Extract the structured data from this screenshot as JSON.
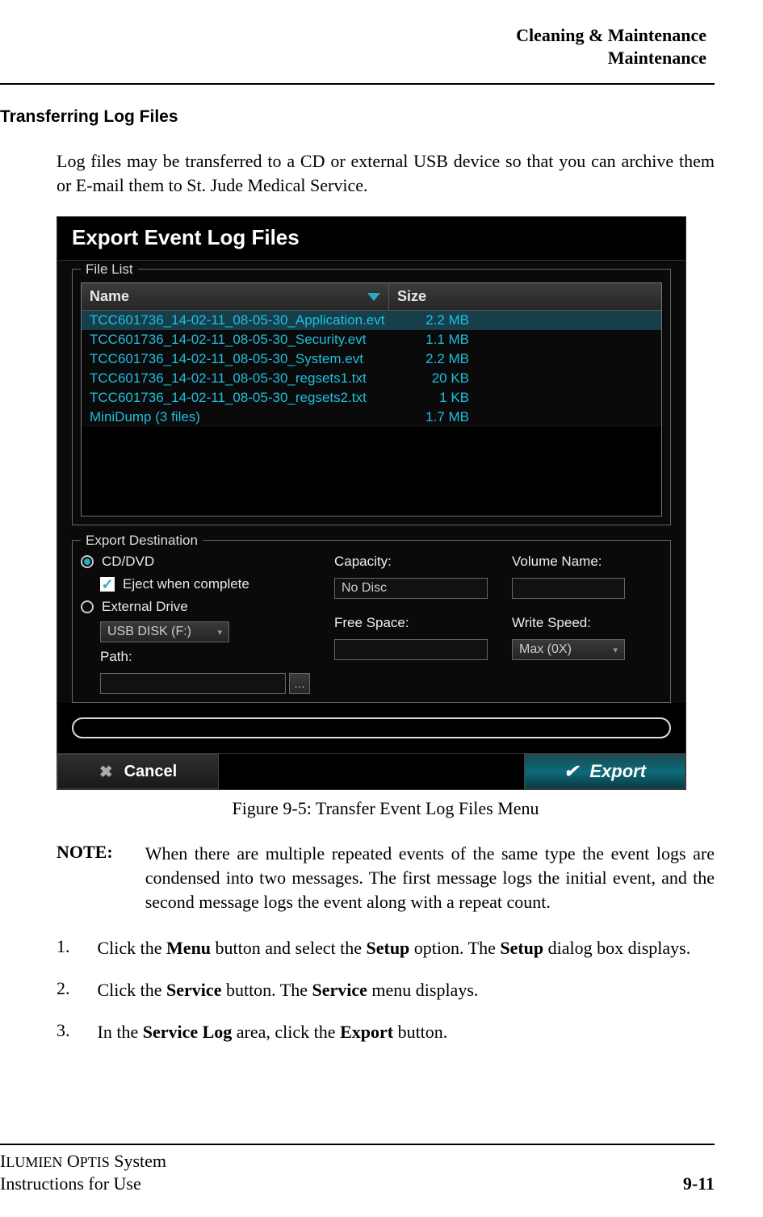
{
  "header": {
    "line1": "Cleaning & Maintenance",
    "line2": "Maintenance"
  },
  "section_title": "Transferring Log Files",
  "intro": "Log files may be transferred to a CD or external USB device so that you can archive them or E-mail them to St. Jude Medical Service.",
  "dialog": {
    "title": "Export Event Log Files",
    "file_list_legend": "File List",
    "columns": {
      "name": "Name",
      "size": "Size"
    },
    "rows": [
      {
        "name": "TCC601736_14-02-11_08-05-30_Application.evt",
        "size": "2.2 MB",
        "selected": true
      },
      {
        "name": "TCC601736_14-02-11_08-05-30_Security.evt",
        "size": "1.1 MB",
        "selected": false
      },
      {
        "name": "TCC601736_14-02-11_08-05-30_System.evt",
        "size": "2.2 MB",
        "selected": false
      },
      {
        "name": "TCC601736_14-02-11_08-05-30_regsets1.txt",
        "size": "20 KB",
        "selected": false
      },
      {
        "name": "TCC601736_14-02-11_08-05-30_regsets2.txt",
        "size": "1 KB",
        "selected": false
      },
      {
        "name": "MiniDump (3 files)",
        "size": "1.7 MB",
        "selected": false
      }
    ],
    "dest_legend": "Export Destination",
    "radio_cd": "CD/DVD",
    "eject_label": "Eject when complete",
    "radio_ext": "External Drive",
    "usb_value": "USB DISK (F:)",
    "path_label": "Path:",
    "capacity_label": "Capacity:",
    "capacity_value": "No Disc",
    "freespace_label": "Free Space:",
    "freespace_value": "",
    "volname_label": "Volume Name:",
    "volname_value": "",
    "writespeed_label": "Write Speed:",
    "writespeed_value": "Max (0X)",
    "cancel": "Cancel",
    "export": "Export"
  },
  "caption": "Figure 9-5:  Transfer Event Log Files Menu",
  "note": {
    "label": "NOTE:",
    "text": "When there are multiple repeated events of the same type the event logs are condensed into two messages. The first message logs the initial event, and the second message logs the event along with a repeat count."
  },
  "steps": {
    "s1": {
      "n": "1.",
      "pre": "Click the ",
      "b1": "Menu",
      "mid1": " button and select the ",
      "b2": "Setup",
      "mid2": " option. The ",
      "b3": "Setup",
      "post": " dialog box displays."
    },
    "s2": {
      "n": "2.",
      "pre": "Click the ",
      "b1": "Service",
      "mid1": " button. The ",
      "b2": "Service",
      "post": " menu displays."
    },
    "s3": {
      "n": "3.",
      "pre": "In the ",
      "b1": "Service Log",
      "mid1": " area, click  the ",
      "b2": "Export",
      "post": " button."
    }
  },
  "footer": {
    "product1a": "I",
    "product1b": "LUMIEN",
    "product1c": " O",
    "product1d": "PTIS",
    "product1e": " System",
    "line2": "Instructions for Use",
    "page": "9-11"
  }
}
